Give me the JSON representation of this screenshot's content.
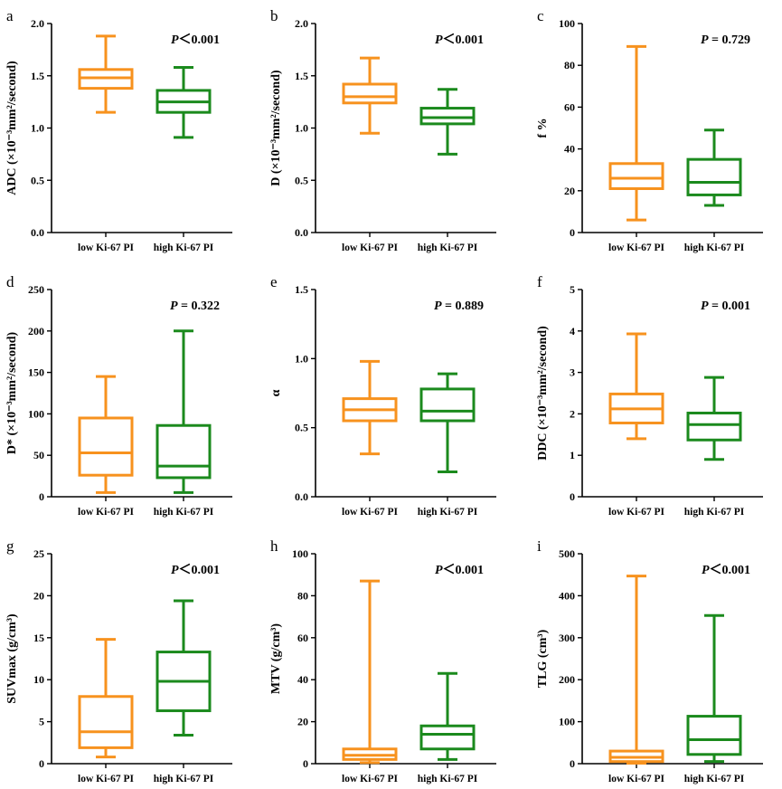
{
  "chart_data": [
    {
      "type": "boxplot",
      "panel_label": "a",
      "p_italic": "P",
      "p_text": "＜0.001",
      "ylabel": "ADC (×10⁻³mm²/second)",
      "ylim": [
        0,
        2.0
      ],
      "yticks": [
        0,
        0.5,
        1.0,
        1.5,
        2.0
      ],
      "ytick_labels": [
        "0.0",
        "0.5",
        "1.0",
        "1.5",
        "2.0"
      ],
      "categories": [
        "low Ki-67 PI",
        "high Ki-67 PI"
      ],
      "boxes": [
        {
          "min": 1.15,
          "q1": 1.38,
          "median": 1.48,
          "q3": 1.56,
          "max": 1.88,
          "color": "#f7921e"
        },
        {
          "min": 0.91,
          "q1": 1.15,
          "median": 1.25,
          "q3": 1.36,
          "max": 1.58,
          "color": "#1b8a1d"
        }
      ]
    },
    {
      "type": "boxplot",
      "panel_label": "b",
      "p_italic": "P",
      "p_text": "＜0.001",
      "ylabel": "D (×10⁻³mm²/second)",
      "ylim": [
        0,
        2.0
      ],
      "yticks": [
        0,
        0.5,
        1.0,
        1.5,
        2.0
      ],
      "ytick_labels": [
        "0.0",
        "0.5",
        "1.0",
        "1.5",
        "2.0"
      ],
      "categories": [
        "low Ki-67 PI",
        "high Ki-67 PI"
      ],
      "boxes": [
        {
          "min": 0.95,
          "q1": 1.24,
          "median": 1.3,
          "q3": 1.42,
          "max": 1.67,
          "color": "#f7921e"
        },
        {
          "min": 0.75,
          "q1": 1.04,
          "median": 1.1,
          "q3": 1.19,
          "max": 1.37,
          "color": "#1b8a1d"
        }
      ]
    },
    {
      "type": "boxplot",
      "panel_label": "c",
      "p_italic": "P",
      "p_text": " = 0.729",
      "ylabel": "f %",
      "ylim": [
        0,
        100
      ],
      "yticks": [
        0,
        20,
        40,
        60,
        80,
        100
      ],
      "ytick_labels": [
        "0",
        "20",
        "40",
        "60",
        "80",
        "100"
      ],
      "categories": [
        "low Ki-67 PI",
        "high Ki-67 PI"
      ],
      "boxes": [
        {
          "min": 6,
          "q1": 21,
          "median": 26,
          "q3": 33,
          "max": 89,
          "color": "#f7921e"
        },
        {
          "min": 13,
          "q1": 18,
          "median": 24,
          "q3": 35,
          "max": 49,
          "color": "#1b8a1d"
        }
      ]
    },
    {
      "type": "boxplot",
      "panel_label": "d",
      "p_italic": "P",
      "p_text": " = 0.322",
      "ylabel": "D* (×10⁻³mm²/second)",
      "ylim": [
        0,
        250
      ],
      "yticks": [
        0,
        50,
        100,
        150,
        200,
        250
      ],
      "ytick_labels": [
        "0",
        "50",
        "100",
        "150",
        "200",
        "250"
      ],
      "categories": [
        "low Ki-67 PI",
        "high Ki-67 PI"
      ],
      "boxes": [
        {
          "min": 5,
          "q1": 26,
          "median": 53,
          "q3": 95,
          "max": 145,
          "color": "#f7921e"
        },
        {
          "min": 5,
          "q1": 23,
          "median": 37,
          "q3": 86,
          "max": 200,
          "color": "#1b8a1d"
        }
      ]
    },
    {
      "type": "boxplot",
      "panel_label": "e",
      "p_italic": "P",
      "p_text": " = 0.889",
      "ylabel": "α",
      "ylim": [
        0,
        1.5
      ],
      "yticks": [
        0,
        0.5,
        1.0,
        1.5
      ],
      "ytick_labels": [
        "0.0",
        "0.5",
        "1.0",
        "1.5"
      ],
      "categories": [
        "low Ki-67 PI",
        "high Ki-67 PI"
      ],
      "boxes": [
        {
          "min": 0.31,
          "q1": 0.55,
          "median": 0.63,
          "q3": 0.71,
          "max": 0.98,
          "color": "#f7921e"
        },
        {
          "min": 0.18,
          "q1": 0.55,
          "median": 0.62,
          "q3": 0.78,
          "max": 0.89,
          "color": "#1b8a1d"
        }
      ]
    },
    {
      "type": "boxplot",
      "panel_label": "f",
      "p_italic": "P",
      "p_text": " = 0.001",
      "ylabel": "DDC (×10⁻³mm²/second)",
      "ylim": [
        0,
        5
      ],
      "yticks": [
        0,
        1,
        2,
        3,
        4,
        5
      ],
      "ytick_labels": [
        "0",
        "1",
        "2",
        "3",
        "4",
        "5"
      ],
      "categories": [
        "low Ki-67 PI",
        "high Ki-67 PI"
      ],
      "boxes": [
        {
          "min": 1.4,
          "q1": 1.78,
          "median": 2.12,
          "q3": 2.48,
          "max": 3.93,
          "color": "#f7921e"
        },
        {
          "min": 0.9,
          "q1": 1.37,
          "median": 1.74,
          "q3": 2.02,
          "max": 2.88,
          "color": "#1b8a1d"
        }
      ]
    },
    {
      "type": "boxplot",
      "panel_label": "g",
      "p_italic": "P",
      "p_text": "＜0.001",
      "ylabel": "SUVmax (g/cm³)",
      "ylim": [
        0,
        25
      ],
      "yticks": [
        0,
        5,
        10,
        15,
        20,
        25
      ],
      "ytick_labels": [
        "0",
        "5",
        "10",
        "15",
        "20",
        "25"
      ],
      "categories": [
        "low Ki-67 PI",
        "high Ki-67 PI"
      ],
      "boxes": [
        {
          "min": 0.8,
          "q1": 1.9,
          "median": 3.8,
          "q3": 8.0,
          "max": 14.8,
          "color": "#f7921e"
        },
        {
          "min": 3.4,
          "q1": 6.3,
          "median": 9.8,
          "q3": 13.3,
          "max": 19.4,
          "color": "#1b8a1d"
        }
      ]
    },
    {
      "type": "boxplot",
      "panel_label": "h",
      "p_italic": "P",
      "p_text": "＜0.001",
      "ylabel": "MTV (g/cm³)",
      "ylim": [
        0,
        100
      ],
      "yticks": [
        0,
        20,
        40,
        60,
        80,
        100
      ],
      "ytick_labels": [
        "0",
        "20",
        "40",
        "60",
        "80",
        "100"
      ],
      "categories": [
        "low Ki-67 PI",
        "high Ki-67 PI"
      ],
      "boxes": [
        {
          "min": 0.5,
          "q1": 2,
          "median": 4,
          "q3": 7,
          "max": 87,
          "color": "#f7921e"
        },
        {
          "min": 2,
          "q1": 7,
          "median": 14,
          "q3": 18,
          "max": 43,
          "color": "#1b8a1d"
        }
      ]
    },
    {
      "type": "boxplot",
      "panel_label": "i",
      "p_italic": "P",
      "p_text": "＜0.001",
      "ylabel": "TLG (cm³)",
      "ylim": [
        0,
        500
      ],
      "yticks": [
        0,
        100,
        200,
        300,
        400,
        500
      ],
      "ytick_labels": [
        "0",
        "100",
        "200",
        "300",
        "400",
        "500"
      ],
      "categories": [
        "low Ki-67 PI",
        "high Ki-67 PI"
      ],
      "boxes": [
        {
          "min": 1,
          "q1": 5,
          "median": 15,
          "q3": 30,
          "max": 447,
          "color": "#f7921e"
        },
        {
          "min": 5,
          "q1": 22,
          "median": 57,
          "q3": 113,
          "max": 353,
          "color": "#1b8a1d"
        }
      ]
    }
  ]
}
